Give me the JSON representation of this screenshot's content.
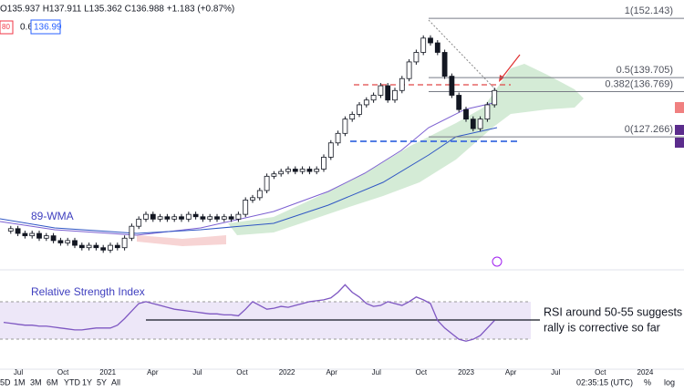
{
  "chart_data": {
    "type": "candlestick",
    "header": {
      "ohlc": "O135.937 H137.911 L135.362 C136.988 +1.183 (+0.87%)",
      "left_tag": "80",
      "size": "0.6",
      "price_tag": "136.99"
    },
    "ylim": [
      100.5,
      156
    ],
    "closes": [
      107.5,
      108,
      107,
      106.5,
      107,
      106,
      106.5,
      105.5,
      105,
      105.5,
      104.5,
      104,
      104.5,
      104,
      103.5,
      104.5,
      104,
      106,
      108.5,
      110,
      111,
      110,
      110.5,
      110,
      110.5,
      110,
      111,
      110.5,
      110,
      110.5,
      110,
      110.5,
      110,
      111,
      114,
      114.5,
      116,
      119,
      119.5,
      120,
      120.5,
      120,
      120.5,
      120,
      120.5,
      123,
      126,
      128,
      131,
      132,
      134,
      135,
      136,
      138,
      135,
      137,
      139.5,
      143,
      145,
      148,
      147,
      145,
      140,
      136,
      133,
      131,
      129,
      131,
      134,
      137
    ],
    "fib": [
      {
        "value": 152.143,
        "label": "1(152.143)"
      },
      {
        "value": 139.705,
        "label": "0.5(139.705)"
      },
      {
        "value": 136.769,
        "label": "0.382(136.769)"
      },
      {
        "value": 127.266,
        "label": "0(127.266)"
      }
    ],
    "ma_label": "89-WMA",
    "rsi": {
      "title": "Relative Strength Index",
      "ylim": [
        3,
        100
      ],
      "values": [
        48,
        47,
        46,
        45,
        45,
        44,
        44,
        43,
        42,
        41,
        40,
        40,
        41,
        42,
        42,
        42,
        45,
        52,
        60,
        68,
        70,
        68,
        66,
        64,
        62,
        61,
        60,
        59,
        58,
        57,
        57,
        56,
        56,
        55,
        62,
        70,
        66,
        62,
        63,
        65,
        64,
        66,
        68,
        70,
        71,
        72,
        74,
        80,
        88,
        80,
        75,
        68,
        65,
        66,
        70,
        68,
        66,
        70,
        75,
        72,
        68,
        50,
        42,
        36,
        30,
        28,
        30,
        34,
        42,
        50
      ],
      "note": [
        "RSI around 50-55 suggests",
        "rally is corrective so far"
      ]
    },
    "x_labels": [
      "Jul",
      "Oct",
      "2021",
      "Apr",
      "Jul",
      "Oct",
      "2022",
      "Apr",
      "Jul",
      "Oct",
      "2023",
      "Apr",
      "Jul",
      "Oct",
      "2024"
    ],
    "timeframes": [
      "5D",
      "1M",
      "3M",
      "6M",
      "YTD",
      "1Y",
      "5Y",
      "All"
    ],
    "clock": "02:35:15 (UTC)",
    "pct": "%",
    "log": "log"
  }
}
